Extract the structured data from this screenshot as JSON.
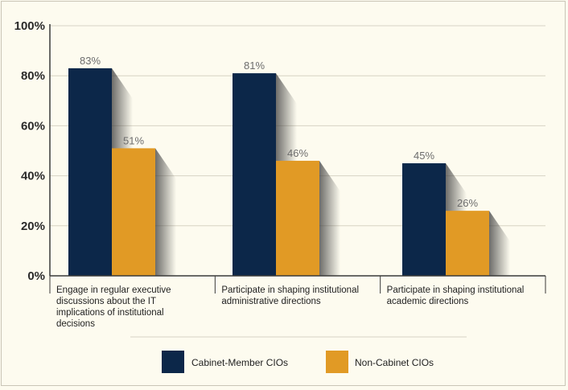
{
  "chart_data": {
    "type": "bar",
    "categories": [
      [
        "Engage in regular executive",
        "discussions about the IT",
        "implications of institutional",
        "decisions"
      ],
      [
        "Participate in shaping institutional",
        "administrative directions"
      ],
      [
        "Participate in shaping institutional",
        "academic directions"
      ]
    ],
    "series": [
      {
        "name": "Cabinet-Member CIOs",
        "values": [
          83,
          81,
          45
        ],
        "color": "#0c2749"
      },
      {
        "name": "Non-Cabinet CIOs",
        "values": [
          51,
          46,
          26
        ],
        "color": "#e19a25"
      }
    ],
    "value_labels": [
      [
        "83%",
        "81%",
        "45%"
      ],
      [
        "51%",
        "46%",
        "26%"
      ]
    ],
    "ylim": [
      0,
      100
    ],
    "y_ticks": [
      0,
      20,
      40,
      60,
      80,
      100
    ],
    "y_tick_labels": [
      "0%",
      "20%",
      "40%",
      "60%",
      "80%",
      "100%"
    ],
    "xlabel": "",
    "ylabel": "",
    "grid": true,
    "legend_position": "bottom"
  },
  "colors": {
    "background": "#fdfbef",
    "grid": "#d7d3c4",
    "axis": "#3a3a3a",
    "shadow": "#555555"
  }
}
